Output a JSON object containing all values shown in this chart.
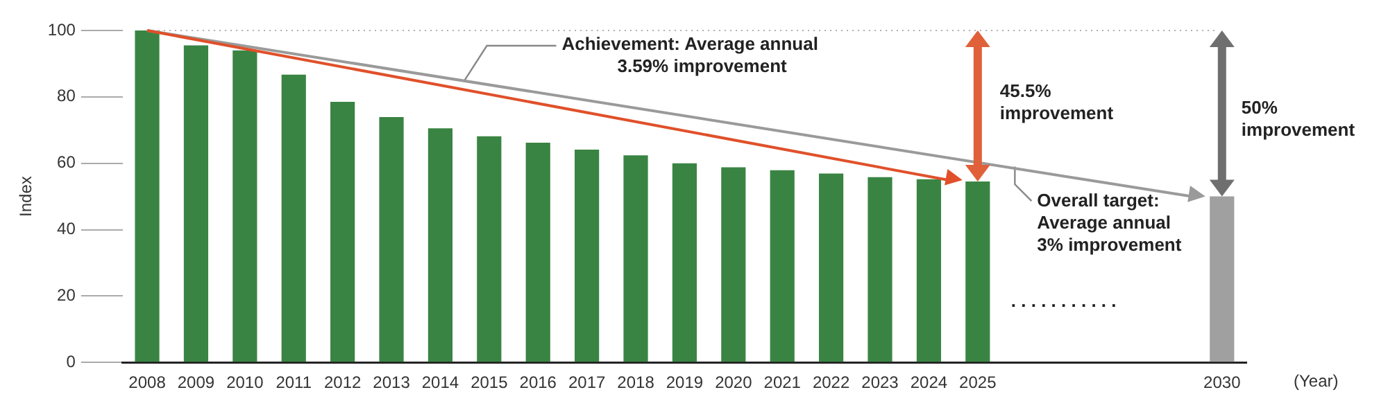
{
  "chart_data": {
    "type": "bar",
    "ylabel": "Index",
    "xlabel": "(Year)",
    "categories": [
      "2008",
      "2009",
      "2010",
      "2011",
      "2012",
      "2013",
      "2014",
      "2015",
      "2016",
      "2017",
      "2018",
      "2019",
      "2020",
      "2021",
      "2022",
      "2023",
      "2024",
      "2025",
      null,
      null,
      null,
      null,
      "2030"
    ],
    "values": [
      100,
      95.5,
      94,
      86.7,
      78.5,
      73.9,
      70.5,
      68.1,
      66.2,
      64.1,
      62.4,
      60,
      58.8,
      57.9,
      56.9,
      55.8,
      55.2,
      54.5,
      null,
      null,
      null,
      null,
      50
    ],
    "colors": [
      "#3a8443",
      "#3a8443",
      "#3a8443",
      "#3a8443",
      "#3a8443",
      "#3a8443",
      "#3a8443",
      "#3a8443",
      "#3a8443",
      "#3a8443",
      "#3a8443",
      "#3a8443",
      "#3a8443",
      "#3a8443",
      "#3a8443",
      "#3a8443",
      "#3a8443",
      "#3a8443",
      "#3a8443",
      "#3a8443",
      "#3a8443",
      "#3a8443",
      "#a0a0a0"
    ],
    "ylim": [
      0,
      100
    ],
    "yticks": [
      0,
      20,
      40,
      60,
      80,
      100
    ],
    "grid": false,
    "legend": false,
    "ref_lines": [
      {
        "axis": "y",
        "value": 100,
        "color": "#b0b0b0",
        "line_style": "dotted"
      }
    ],
    "annotations": [
      "Achievement: Average annual\n3.59% improvement",
      "45.5%\nimprovement",
      "50%\nimprovement",
      "Overall target:\nAverage annual\n3% improvement",
      ". . . . . . . . . . ."
    ]
  }
}
